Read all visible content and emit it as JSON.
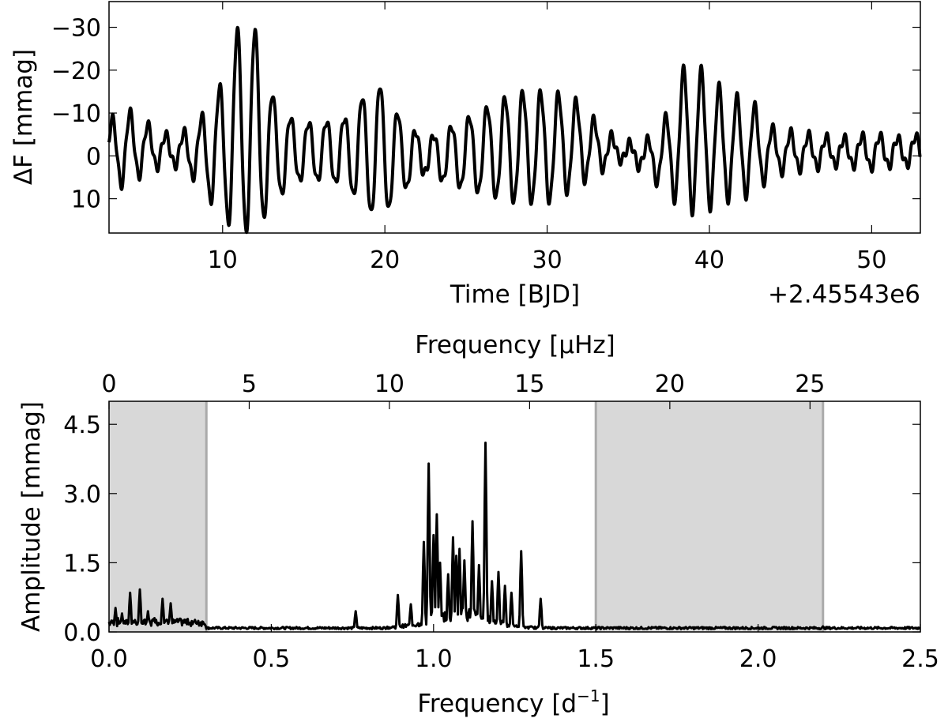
{
  "chart_data": [
    {
      "type": "line",
      "xlabel": "Time [BJD]",
      "ylabel": "ΔF [mmag]",
      "offset_text": "+2.45543e6",
      "xlim": [
        3,
        53
      ],
      "ylim": [
        18,
        -36
      ],
      "y_inverted": true,
      "xticks": [
        10,
        20,
        30,
        40,
        50
      ],
      "xtick_labels": [
        "10",
        "20",
        "30",
        "40",
        "50"
      ],
      "yticks": [
        -30,
        -20,
        -10,
        0,
        10
      ],
      "ytick_labels": [
        "−30",
        "−20",
        "−10",
        "0",
        "10"
      ],
      "grid": false,
      "series_color": "#000000",
      "envelope": {
        "x": [
          3,
          4,
          5.5,
          7,
          8.5,
          9.8,
          10.9,
          12.0,
          13.2,
          14.5,
          16,
          17.5,
          18.8,
          19.8,
          21,
          22.5,
          24,
          26,
          28,
          30,
          31.5,
          33,
          34.5,
          36,
          37.2,
          38.7,
          40,
          41.2,
          42.5,
          44,
          46,
          48,
          50,
          52,
          53
        ],
        "a": [
          7,
          9,
          5,
          3,
          7,
          15,
          24,
          24,
          12,
          7,
          7,
          8,
          14,
          16,
          9,
          4,
          7,
          10,
          13,
          13,
          11,
          6,
          2,
          3,
          8,
          18,
          15,
          12,
          11,
          5,
          4,
          3,
          4,
          3,
          4
        ],
        "c": [
          -1,
          -2,
          -2,
          -1,
          -1,
          -1,
          -6,
          -6,
          -1,
          -1,
          -1,
          -1,
          -1,
          -1,
          0,
          0,
          0,
          -1,
          -2,
          -2,
          -3,
          -2,
          -1,
          0,
          0,
          -5,
          -3,
          -2,
          -2,
          -1,
          -1,
          -1,
          -1,
          -1,
          -1
        ]
      },
      "period_days": 1.1
    },
    {
      "type": "line",
      "xlabel": "Frequency [d⁻¹]",
      "xlabel_main": "Frequency [d",
      "xlabel_sup": "−1",
      "xlabel_close": "]",
      "ylabel": "Amplitude [mmag]",
      "top_xlabel": "Frequency [μHz]",
      "xlim": [
        0,
        2.5
      ],
      "ylim": [
        0,
        5
      ],
      "xticks": [
        0.0,
        0.5,
        1.0,
        1.5,
        2.0,
        2.5
      ],
      "xtick_labels": [
        "0.0",
        "0.5",
        "1.0",
        "1.5",
        "2.0",
        "2.5"
      ],
      "yticks": [
        0.0,
        1.5,
        3.0,
        4.5
      ],
      "ytick_labels": [
        "0.0",
        "1.5",
        "3.0",
        "4.5"
      ],
      "top_xticks": [
        0,
        5,
        10,
        15,
        20,
        25
      ],
      "top_xtick_labels": [
        "0",
        "5",
        "10",
        "15",
        "20",
        "25"
      ],
      "shaded_regions": [
        [
          0,
          0.3
        ],
        [
          1.5,
          2.2
        ]
      ],
      "shade_color": "#d8d8d8",
      "shade_edge_color": "#aaaaaa",
      "grid": false,
      "peaks": [
        {
          "f": 0.02,
          "a": 0.52
        },
        {
          "f": 0.04,
          "a": 0.4
        },
        {
          "f": 0.065,
          "a": 0.85
        },
        {
          "f": 0.095,
          "a": 0.92
        },
        {
          "f": 0.12,
          "a": 0.45
        },
        {
          "f": 0.14,
          "a": 0.3
        },
        {
          "f": 0.165,
          "a": 0.72
        },
        {
          "f": 0.19,
          "a": 0.62
        },
        {
          "f": 0.22,
          "a": 0.25
        },
        {
          "f": 0.26,
          "a": 0.2
        },
        {
          "f": 0.76,
          "a": 0.45
        },
        {
          "f": 0.89,
          "a": 0.8
        },
        {
          "f": 0.93,
          "a": 0.6
        },
        {
          "f": 0.97,
          "a": 1.95
        },
        {
          "f": 0.985,
          "a": 3.65
        },
        {
          "f": 1.0,
          "a": 2.1
        },
        {
          "f": 1.01,
          "a": 2.55
        },
        {
          "f": 1.02,
          "a": 1.5
        },
        {
          "f": 1.045,
          "a": 1.25
        },
        {
          "f": 1.06,
          "a": 2.05
        },
        {
          "f": 1.07,
          "a": 1.65
        },
        {
          "f": 1.08,
          "a": 1.8
        },
        {
          "f": 1.095,
          "a": 1.55
        },
        {
          "f": 1.12,
          "a": 2.4
        },
        {
          "f": 1.14,
          "a": 1.45
        },
        {
          "f": 1.16,
          "a": 4.1
        },
        {
          "f": 1.18,
          "a": 1.1
        },
        {
          "f": 1.2,
          "a": 1.3
        },
        {
          "f": 1.22,
          "a": 1.0
        },
        {
          "f": 1.24,
          "a": 0.85
        },
        {
          "f": 1.27,
          "a": 1.75
        },
        {
          "f": 1.33,
          "a": 0.72
        },
        {
          "f": 1.56,
          "a": 0.1
        },
        {
          "f": 2.2,
          "a": 0.12
        }
      ],
      "noise_floor": 0.06
    }
  ]
}
